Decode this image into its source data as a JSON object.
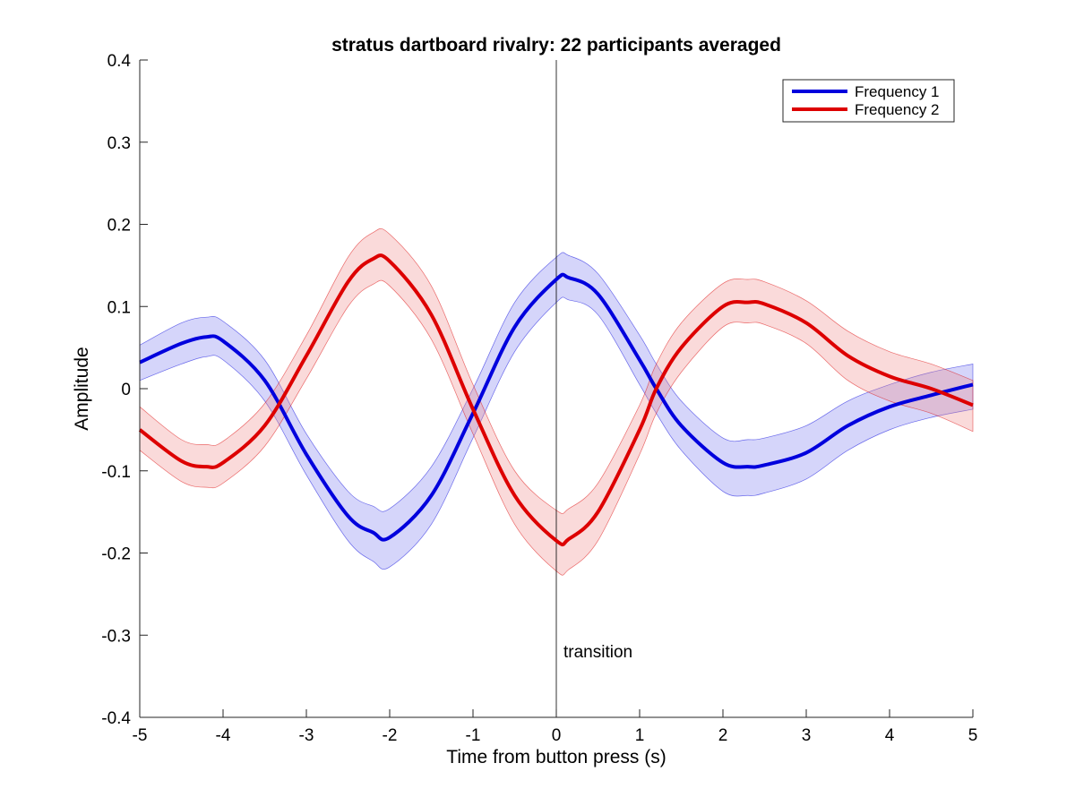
{
  "chart_data": {
    "type": "line",
    "title": "stratus dartboard rivalry: 22 participants averaged",
    "xlabel": "Time from button press (s)",
    "ylabel": "Amplitude",
    "xlim": [
      -5,
      5
    ],
    "ylim": [
      -0.4,
      0.4
    ],
    "xticks": [
      "-5",
      "-4",
      "-3",
      "-2",
      "-1",
      "0",
      "1",
      "2",
      "3",
      "4",
      "5"
    ],
    "yticks": [
      "-0.4",
      "-0.3",
      "-0.2",
      "-0.1",
      "0",
      "0.1",
      "0.2",
      "0.3",
      "0.4"
    ],
    "grid": false,
    "legend_position": "top-right",
    "annotation": {
      "text": "transition",
      "x": 0
    },
    "x": [
      -5,
      -4.5,
      -4.2,
      -4,
      -3.5,
      -3,
      -2.5,
      -2.2,
      -2,
      -1.5,
      -1,
      -0.5,
      0,
      0.15,
      0.5,
      1,
      1.2,
      1.5,
      2,
      2.3,
      2.5,
      3,
      3.5,
      4,
      4.5,
      5
    ],
    "series": [
      {
        "name": "Frequency 1",
        "color": "#0000dd",
        "band_color": "#7b7bf0",
        "values": [
          0.032,
          0.055,
          0.063,
          0.058,
          0.01,
          -0.08,
          -0.155,
          -0.175,
          -0.181,
          -0.13,
          -0.03,
          0.075,
          0.133,
          0.135,
          0.115,
          0.035,
          0.0,
          -0.045,
          -0.09,
          -0.095,
          -0.093,
          -0.078,
          -0.045,
          -0.022,
          -0.008,
          0.005
        ],
        "lower": [
          0.01,
          0.03,
          0.039,
          0.035,
          -0.015,
          -0.105,
          -0.185,
          -0.21,
          -0.217,
          -0.165,
          -0.06,
          0.045,
          0.105,
          0.108,
          0.09,
          0.005,
          -0.03,
          -0.075,
          -0.125,
          -0.13,
          -0.127,
          -0.11,
          -0.075,
          -0.05,
          -0.035,
          -0.025
        ],
        "upper": [
          0.053,
          0.08,
          0.087,
          0.082,
          0.035,
          -0.055,
          -0.125,
          -0.143,
          -0.146,
          -0.095,
          0.0,
          0.105,
          0.16,
          0.162,
          0.14,
          0.065,
          0.03,
          -0.015,
          -0.06,
          -0.062,
          -0.06,
          -0.045,
          -0.015,
          0.005,
          0.02,
          0.03
        ]
      },
      {
        "name": "Frequency 2",
        "color": "#dd0000",
        "band_color": "#f08b8b",
        "values": [
          -0.05,
          -0.088,
          -0.095,
          -0.09,
          -0.045,
          0.04,
          0.13,
          0.158,
          0.155,
          0.09,
          -0.025,
          -0.13,
          -0.185,
          -0.183,
          -0.15,
          -0.05,
          0.0,
          0.05,
          0.1,
          0.105,
          0.103,
          0.08,
          0.04,
          0.015,
          0.0,
          -0.02
        ],
        "lower": [
          -0.075,
          -0.113,
          -0.12,
          -0.115,
          -0.07,
          0.012,
          0.1,
          0.127,
          0.125,
          0.06,
          -0.055,
          -0.165,
          -0.222,
          -0.22,
          -0.185,
          -0.08,
          -0.03,
          0.02,
          0.075,
          0.08,
          0.078,
          0.055,
          0.01,
          -0.015,
          -0.03,
          -0.052
        ],
        "upper": [
          -0.022,
          -0.062,
          -0.068,
          -0.064,
          -0.018,
          0.065,
          0.16,
          0.19,
          0.188,
          0.125,
          0.005,
          -0.1,
          -0.148,
          -0.146,
          -0.115,
          -0.02,
          0.03,
          0.08,
          0.128,
          0.133,
          0.13,
          0.107,
          0.07,
          0.045,
          0.03,
          0.01
        ]
      }
    ]
  }
}
